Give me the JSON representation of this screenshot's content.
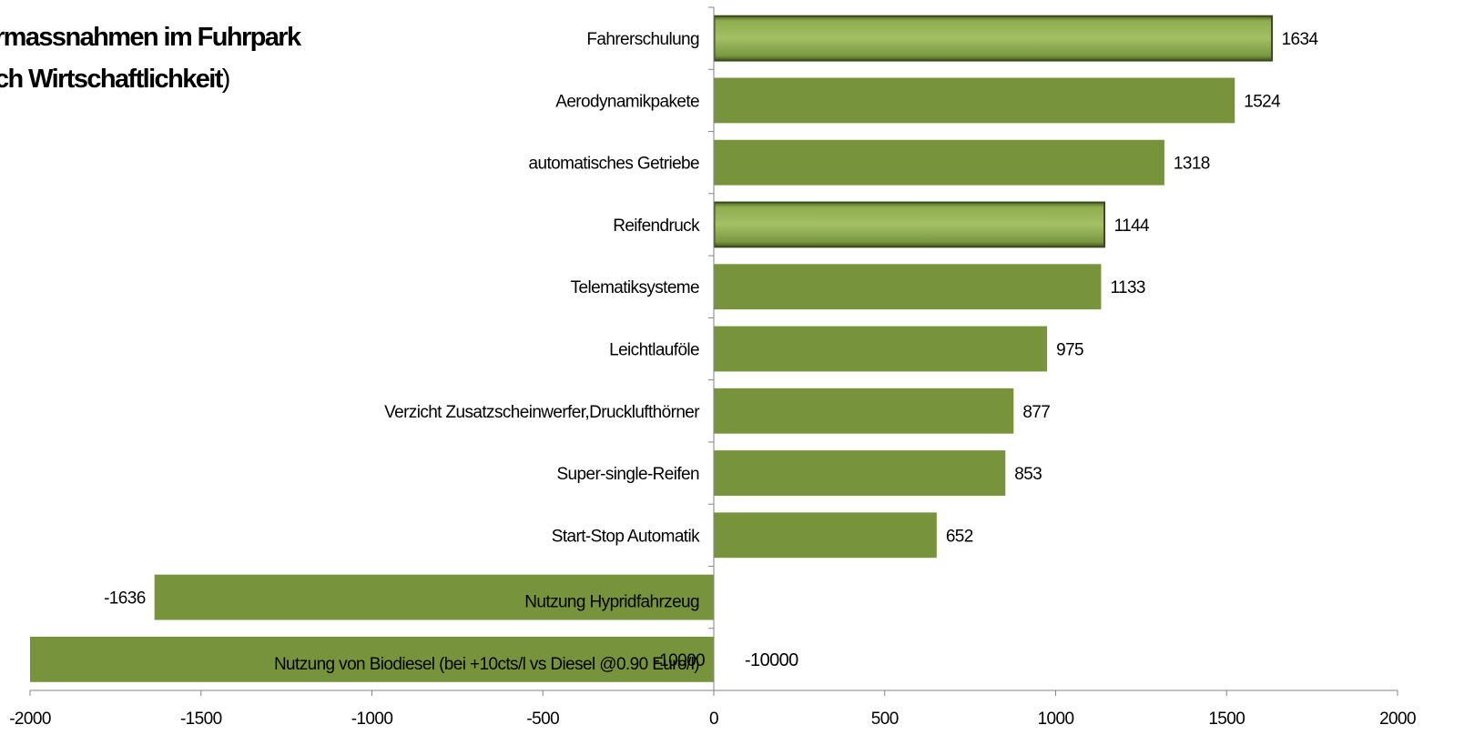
{
  "chart_data": {
    "type": "bar",
    "orientation": "horizontal",
    "title_line1": "rmassnahmen im Fuhrpark",
    "title_line2": "ch Wirtschaftlichkeit",
    "title_line2_paren": ")",
    "categories": [
      "Fahrerschulung",
      "Aerodynamikpakete",
      "automatisches Getriebe",
      "Reifendruck",
      "Telematiksysteme",
      "Leichtlauföle",
      "Verzicht Zusatzscheinwerfer,Drucklufthörner",
      "Super-single-Reifen",
      "Start-Stop Automatik",
      "Nutzung Hypridfahrzeug",
      "Nutzung von Biodiesel (bei +10cts/l vs Diesel @0.90 Euro/l)"
    ],
    "values": [
      1634,
      1524,
      1318,
      1144,
      1133,
      975,
      877,
      853,
      652,
      -1636,
      -10000
    ],
    "data_labels": [
      "1634",
      "1524",
      "1318",
      "1144",
      "1133",
      "975",
      "877",
      "853",
      "652",
      "-1636",
      "-10000"
    ],
    "highlighted": [
      "Fahrerschulung",
      "Reifendruck"
    ],
    "annotation": "-10000",
    "xlim": [
      -2000,
      2000
    ],
    "xticks": [
      "-2000",
      "-1500",
      "-1000",
      "-500",
      "0",
      "500",
      "1000",
      "1500",
      "2000"
    ],
    "bar_color": "#77933c",
    "grid": false,
    "legend": "none"
  }
}
